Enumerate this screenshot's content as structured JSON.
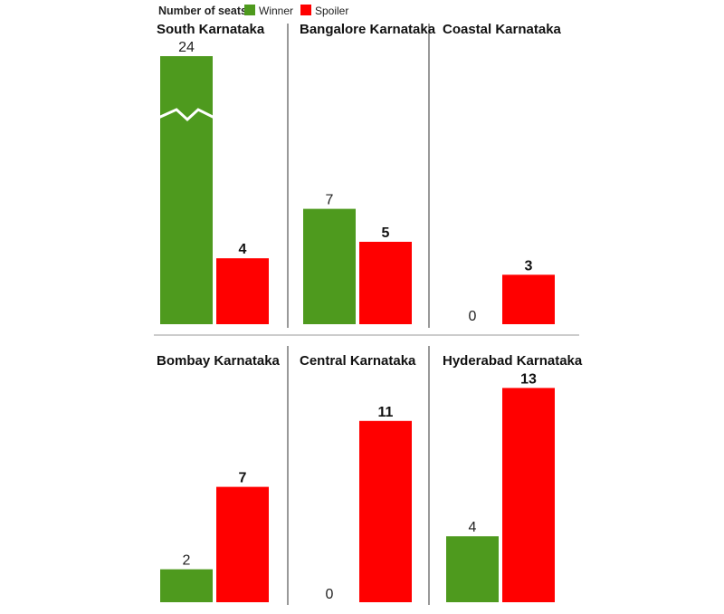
{
  "legend": {
    "title": "Number of seats",
    "series": [
      {
        "name": "Winner",
        "color": "#4e9a1e"
      },
      {
        "name": "Spoiler",
        "color": "#ff0000"
      }
    ]
  },
  "chart_data": {
    "type": "bar",
    "series": [
      {
        "name": "Winner",
        "color": "#4e9a1e"
      },
      {
        "name": "Spoiler",
        "color": "#ff0000"
      }
    ],
    "panels": [
      {
        "title": "South Karnataka",
        "winner": 24,
        "spoiler": 4,
        "winner_axis_break": true
      },
      {
        "title": "Bangalore Karnataka",
        "winner": 7,
        "spoiler": 5
      },
      {
        "title": "Coastal Karnataka",
        "winner": 0,
        "spoiler": 3
      },
      {
        "title": "Bombay Karnataka",
        "winner": 2,
        "spoiler": 7
      },
      {
        "title": "Central Karnataka",
        "winner": 0,
        "spoiler": 11
      },
      {
        "title": "Hyderabad Karnataka",
        "winner": 4,
        "spoiler": 13
      }
    ]
  }
}
